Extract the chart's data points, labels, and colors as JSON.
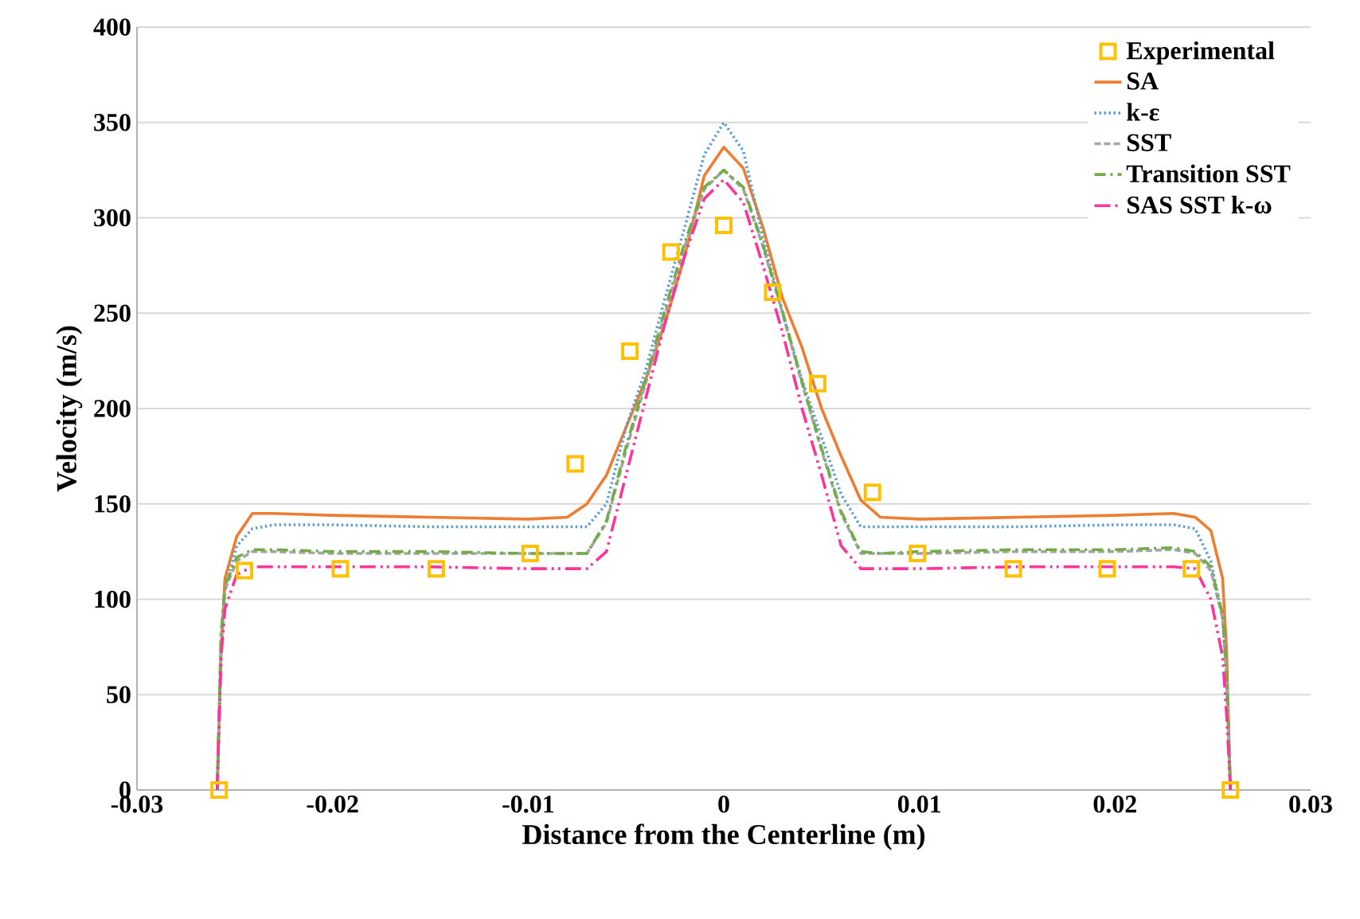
{
  "chart_data": {
    "type": "line",
    "xlabel": "Distance from the Centerline (m)",
    "ylabel": "Velocity (m/s)",
    "xlim": [
      -0.03,
      0.03
    ],
    "xticks": [
      -0.03,
      -0.02,
      -0.01,
      0,
      0.01,
      0.02,
      0.03
    ],
    "ylim": [
      0,
      400
    ],
    "yticks": [
      0,
      50,
      100,
      150,
      200,
      250,
      300,
      350,
      400
    ],
    "grid": "y",
    "legend": "top right",
    "x": [
      -0.0259,
      -0.0257,
      -0.0255,
      -0.0249,
      -0.0241,
      -0.023,
      -0.02,
      -0.015,
      -0.01,
      -0.008,
      -0.007,
      -0.006,
      -0.005,
      -0.004,
      -0.003,
      -0.002,
      -0.001,
      0,
      0.001,
      0.002,
      0.003,
      0.004,
      0.005,
      0.006,
      0.007,
      0.008,
      0.01,
      0.015,
      0.02,
      0.023,
      0.0241,
      0.0249,
      0.0255,
      0.0257,
      0.0259
    ],
    "series": [
      {
        "name": "Experimental",
        "type": "scatter",
        "marker": "square",
        "color": "#ffc000",
        "x": [
          -0.0258,
          -0.0245,
          -0.0196,
          -0.0147,
          -0.0099,
          -0.0076,
          -0.0048,
          -0.0027,
          0,
          0.0025,
          0.0048,
          0.0076,
          0.0099,
          0.0148,
          0.0196,
          0.0239,
          0.0259
        ],
        "values": [
          0,
          115,
          116,
          116,
          124,
          171,
          230,
          282,
          296,
          261,
          213,
          156,
          124,
          116,
          116,
          116,
          0
        ]
      },
      {
        "name": "SA",
        "line_style": "solid",
        "color": "#ed7d31",
        "values": [
          0,
          74,
          111,
          133,
          145,
          145,
          144,
          143,
          142,
          143,
          150,
          165,
          190,
          215,
          245,
          280,
          322,
          337,
          326,
          295,
          258,
          232,
          200,
          175,
          152,
          143,
          142,
          143,
          144,
          145,
          143,
          136,
          111,
          74,
          0
        ]
      },
      {
        "name": "k-ε",
        "line_style": "dotted",
        "color": "#5b9bd5",
        "values": [
          0,
          70,
          105,
          128,
          137,
          139,
          139,
          138,
          138,
          138,
          138,
          150,
          190,
          220,
          258,
          295,
          333,
          350,
          335,
          290,
          250,
          215,
          185,
          155,
          138,
          138,
          138,
          138,
          139,
          139,
          137,
          120,
          90,
          60,
          0
        ]
      },
      {
        "name": "SST",
        "line_style": "dashed",
        "color": "#a5a5a5",
        "values": [
          0,
          80,
          105,
          120,
          125,
          125,
          124,
          124,
          124,
          124,
          124,
          140,
          178,
          213,
          250,
          285,
          315,
          325,
          315,
          285,
          250,
          213,
          178,
          145,
          124,
          124,
          124,
          125,
          125,
          126,
          124,
          115,
          90,
          60,
          0
        ]
      },
      {
        "name": "Transition SST",
        "line_style": "dashdot",
        "color": "#70ad47",
        "values": [
          0,
          82,
          107,
          122,
          126,
          126,
          125,
          125,
          124,
          124,
          124,
          141,
          180,
          215,
          252,
          287,
          316,
          325,
          316,
          286,
          251,
          214,
          179,
          146,
          125,
          124,
          125,
          126,
          126,
          127,
          125,
          117,
          92,
          62,
          0
        ]
      },
      {
        "name": "SAS SST k-ω",
        "line_style": "dashdotdot",
        "color": "#ff3399",
        "values": [
          0,
          70,
          95,
          113,
          117,
          117,
          117,
          117,
          116,
          116,
          116,
          125,
          165,
          205,
          245,
          280,
          310,
          320,
          308,
          275,
          240,
          200,
          165,
          128,
          116,
          116,
          116,
          117,
          117,
          117,
          116,
          100,
          70,
          40,
          0
        ]
      }
    ]
  }
}
